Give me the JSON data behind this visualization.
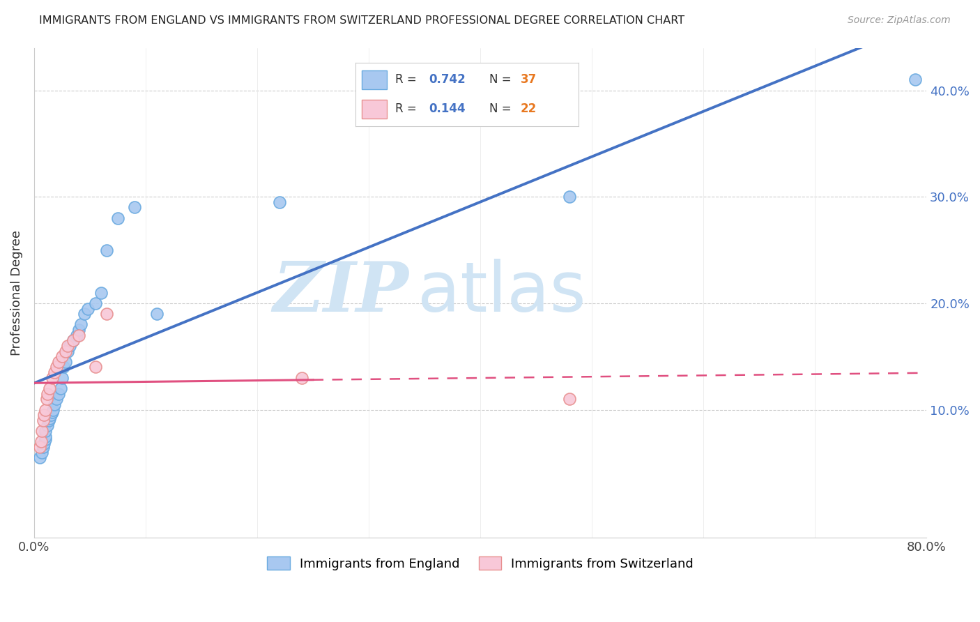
{
  "title": "IMMIGRANTS FROM ENGLAND VS IMMIGRANTS FROM SWITZERLAND PROFESSIONAL DEGREE CORRELATION CHART",
  "source": "Source: ZipAtlas.com",
  "ylabel": "Professional Degree",
  "xlim": [
    0,
    0.8
  ],
  "ylim": [
    -0.02,
    0.44
  ],
  "y_ticks": [
    0.1,
    0.2,
    0.3,
    0.4
  ],
  "y_tick_labels": [
    "10.0%",
    "20.0%",
    "30.0%",
    "40.0%"
  ],
  "x_ticks": [
    0.0,
    0.1,
    0.2,
    0.3,
    0.4,
    0.5,
    0.6,
    0.7,
    0.8
  ],
  "x_tick_labels": [
    "0.0%",
    "",
    "",
    "",
    "",
    "",
    "",
    "",
    "80.0%"
  ],
  "england_color": "#a8c8f0",
  "england_edge_color": "#6aaae0",
  "switzerland_color": "#f8c8d8",
  "switzerland_edge_color": "#e89090",
  "england_R": 0.742,
  "england_N": 37,
  "switzerland_R": 0.144,
  "switzerland_N": 22,
  "england_line_color": "#4472c4",
  "switzerland_line_color": "#e05080",
  "watermark_zip": "ZIP",
  "watermark_atlas": "atlas",
  "watermark_color": "#d0e4f4",
  "legend_R_color": "#4472c4",
  "legend_N_color": "#e87820",
  "england_scatter_x": [
    0.005,
    0.007,
    0.008,
    0.009,
    0.01,
    0.01,
    0.01,
    0.012,
    0.013,
    0.014,
    0.015,
    0.016,
    0.017,
    0.018,
    0.02,
    0.022,
    0.024,
    0.025,
    0.026,
    0.028,
    0.03,
    0.032,
    0.035,
    0.038,
    0.04,
    0.042,
    0.045,
    0.048,
    0.055,
    0.06,
    0.065,
    0.075,
    0.09,
    0.11,
    0.22,
    0.48,
    0.79
  ],
  "england_scatter_y": [
    0.055,
    0.06,
    0.065,
    0.068,
    0.072,
    0.075,
    0.08,
    0.085,
    0.09,
    0.092,
    0.095,
    0.098,
    0.1,
    0.105,
    0.11,
    0.115,
    0.12,
    0.13,
    0.14,
    0.145,
    0.155,
    0.16,
    0.165,
    0.17,
    0.175,
    0.18,
    0.19,
    0.195,
    0.2,
    0.21,
    0.25,
    0.28,
    0.29,
    0.19,
    0.295,
    0.3,
    0.41
  ],
  "switzerland_scatter_x": [
    0.005,
    0.006,
    0.007,
    0.008,
    0.009,
    0.01,
    0.011,
    0.012,
    0.014,
    0.016,
    0.018,
    0.02,
    0.022,
    0.025,
    0.028,
    0.03,
    0.035,
    0.04,
    0.055,
    0.065,
    0.24,
    0.48
  ],
  "switzerland_scatter_y": [
    0.065,
    0.07,
    0.08,
    0.09,
    0.095,
    0.1,
    0.11,
    0.115,
    0.12,
    0.13,
    0.135,
    0.14,
    0.145,
    0.15,
    0.155,
    0.16,
    0.165,
    0.17,
    0.14,
    0.19,
    0.13,
    0.11
  ]
}
